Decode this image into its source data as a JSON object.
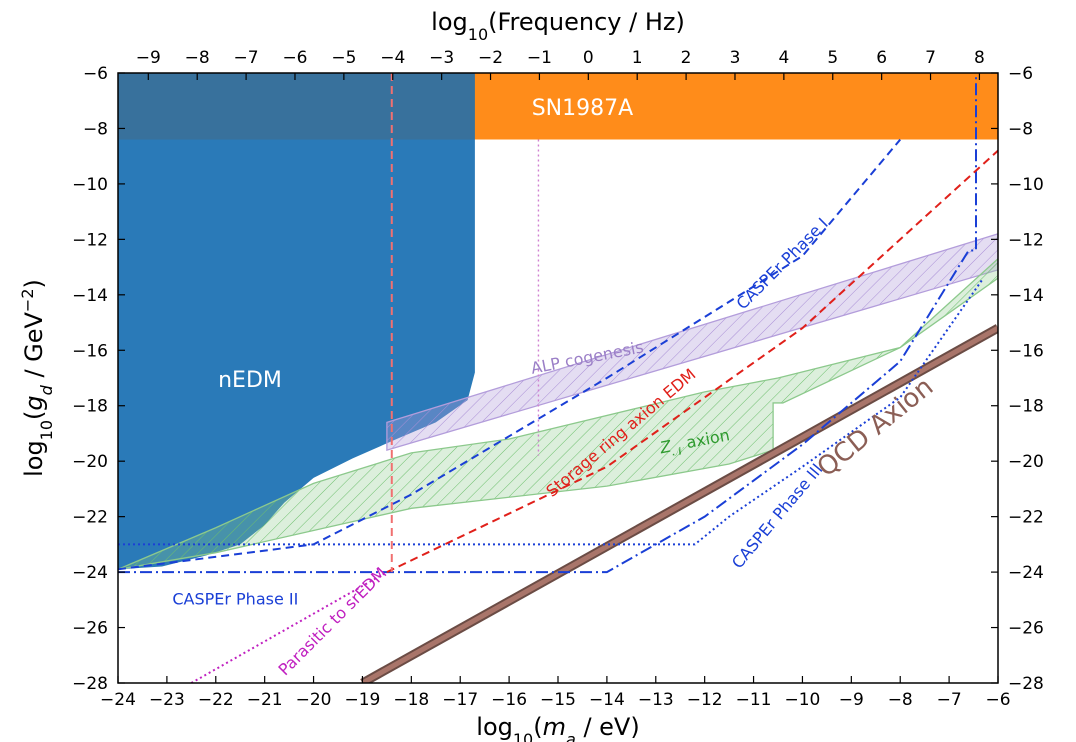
{
  "chart_data": {
    "type": "area",
    "x_axis": {
      "label_parts": [
        {
          "t": "log"
        },
        {
          "t": "10",
          "sub": true
        },
        {
          "t": "("
        },
        {
          "t": "m",
          "italic": true
        },
        {
          "t": "a",
          "sub": true,
          "italic": true
        },
        {
          "t": " / eV)"
        }
      ],
      "range": [
        -24,
        -6
      ],
      "ticks": [
        -24,
        -23,
        -22,
        -21,
        -20,
        -19,
        -18,
        -17,
        -16,
        -15,
        -14,
        -13,
        -12,
        -11,
        -10,
        -9,
        -8,
        -7,
        -6
      ]
    },
    "x2_axis": {
      "label_parts": [
        {
          "t": "log"
        },
        {
          "t": "10",
          "sub": true
        },
        {
          "t": "(Frequency / Hz)"
        }
      ],
      "ticks": [
        -9,
        -8,
        -7,
        -6,
        -5,
        -4,
        -3,
        -2,
        -1,
        0,
        1,
        2,
        3,
        4,
        5,
        6,
        7,
        8
      ],
      "offset": 14.38
    },
    "y_axis": {
      "label_parts": [
        {
          "t": "log"
        },
        {
          "t": "10",
          "sub": true
        },
        {
          "t": "("
        },
        {
          "t": "g",
          "italic": true
        },
        {
          "t": "d",
          "sub": true,
          "italic": true
        },
        {
          "t": " / GeV"
        },
        {
          "t": "−2",
          "sup": true
        },
        {
          "t": ")"
        }
      ],
      "range": [
        -28,
        -6
      ],
      "ticks": [
        -28,
        -26,
        -24,
        -22,
        -20,
        -18,
        -16,
        -14,
        -12,
        -10,
        -8,
        -6
      ]
    },
    "regions": [
      {
        "name": "SN1987A",
        "color": "#ff8c1a",
        "points": [
          [
            -24,
            -6
          ],
          [
            -6,
            -6
          ],
          [
            -6,
            -8.4
          ],
          [
            -24,
            -8.4
          ]
        ],
        "label": "SN1987A",
        "label_pos": [
          -14.5,
          -7.3
        ],
        "label_color": "#ffffff",
        "label_size": 22
      },
      {
        "name": "nEDM",
        "color": "#2a7ab8",
        "points": [
          [
            -24,
            -6
          ],
          [
            -16.7,
            -6
          ],
          [
            -16.7,
            -16.8
          ],
          [
            -16.85,
            -17.8
          ],
          [
            -17.5,
            -18.6
          ],
          [
            -18.3,
            -19.2
          ],
          [
            -19.2,
            -19.9
          ],
          [
            -20.0,
            -20.6
          ],
          [
            -20.6,
            -21.5
          ],
          [
            -21.0,
            -22.3
          ],
          [
            -21.5,
            -23.0
          ],
          [
            -22.2,
            -23.4
          ],
          [
            -23.1,
            -23.8
          ],
          [
            -24,
            -23.9
          ]
        ],
        "label": "nEDM",
        "label_pos": [
          -21.3,
          -17.1
        ],
        "label_color": "#ffffff",
        "label_size": 22
      },
      {
        "name": "ALP cogenesis",
        "color": "#b39ddb",
        "points": [
          [
            -18.5,
            -18.6
          ],
          [
            -6,
            -11.8
          ],
          [
            -6,
            -13.1
          ],
          [
            -18.5,
            -19.6
          ]
        ],
        "label": "ALP cogenesis",
        "label_pos": [
          -14.4,
          -16.3
        ],
        "label_color": "#9b7fc7",
        "label_size": 16,
        "label_angle": -11
      },
      {
        "name": "Z_N axion",
        "color": "#8cc98c",
        "points": [
          [
            -24,
            -23.9
          ],
          [
            -22,
            -22.4
          ],
          [
            -20,
            -20.8
          ],
          [
            -18,
            -19.7
          ],
          [
            -16,
            -19.2
          ],
          [
            -12,
            -17.5
          ],
          [
            -10.5,
            -17.0
          ],
          [
            -8,
            -15.9
          ],
          [
            -6,
            -12.7
          ],
          [
            -6,
            -13.4
          ],
          [
            -8,
            -15.9
          ],
          [
            -10.4,
            -17.9
          ],
          [
            -10.6,
            -17.9
          ],
          [
            -10.6,
            -19.6
          ],
          [
            -11.5,
            -20.1
          ],
          [
            -14,
            -20.9
          ],
          [
            -18,
            -21.7
          ],
          [
            -22,
            -23.3
          ],
          [
            -24,
            -23.9
          ]
        ],
        "label": "Z",
        "label_sub": "𝒩",
        "label_rest": " axion",
        "label_pos": [
          -12.2,
          -19.3
        ],
        "label_color": "#2e9a2e",
        "label_size": 16,
        "label_angle": -11
      }
    ],
    "lines": [
      {
        "name": "CASPEr Phase I",
        "color": "#1a3fd6",
        "dash": "8,5",
        "width": 2,
        "points": [
          [
            -24,
            -23.9
          ],
          [
            -20.0,
            -23.0
          ],
          [
            -18.0,
            -21.2
          ],
          [
            -14.0,
            -17.0
          ],
          [
            -10.0,
            -12.6
          ],
          [
            -8.0,
            -8.4
          ]
        ],
        "label": "CASPEr Phase I",
        "label_pos": [
          -10.4,
          -12.9
        ],
        "label_angle": -45,
        "label_color": "#1a3fd6"
      },
      {
        "name": "CASPEr Phase II",
        "color": "#1a3fd6",
        "dash": "12,4,2,4",
        "width": 2,
        "points": [
          [
            -24,
            -24.0
          ],
          [
            -14.0,
            -24.0
          ],
          [
            -12.0,
            -22.0
          ],
          [
            -10.0,
            -19.4
          ],
          [
            -8.0,
            -16.4
          ],
          [
            -6.6,
            -12.4
          ],
          [
            -6.45,
            -12.4
          ],
          [
            -6.45,
            -6.0
          ]
        ],
        "label": "CASPEr Phase II",
        "label_pos": [
          -21.6,
          -25.0
        ],
        "label_angle": 0,
        "label_color": "#1a3fd6"
      },
      {
        "name": "CASPEr Phase III",
        "color": "#1a3fd6",
        "dash": "2,3",
        "width": 2,
        "points": [
          [
            -24,
            -23.0
          ],
          [
            -12.2,
            -23.0
          ],
          [
            -11.5,
            -22.0
          ],
          [
            -10.0,
            -20.2
          ],
          [
            -8.0,
            -17.7
          ],
          [
            -6.3,
            -13.4
          ]
        ],
        "label": "CASPEr Phase III",
        "label_pos": [
          -10.5,
          -22.0
        ],
        "label_angle": -50,
        "label_color": "#1a3fd6"
      },
      {
        "name": "Storage ring axion EDM",
        "color": "#e0201a",
        "dash": "8,5",
        "width": 2,
        "points": [
          [
            -18.5,
            -24.0
          ],
          [
            -14.0,
            -20.2
          ],
          [
            -10.0,
            -15.2
          ],
          [
            -6.0,
            -8.8
          ]
        ],
        "label": "Storage ring axion EDM",
        "label_pos": [
          -13.7,
          -19.0
        ],
        "label_angle": -40,
        "label_color": "#e0201a"
      },
      {
        "name": "Parasitic to srEDM",
        "color": "#c020c0",
        "dash": "2,3",
        "width": 2,
        "points": [
          [
            -22.5,
            -28.0
          ],
          [
            -18.5,
            -24.0
          ]
        ],
        "label": "Parasitic to srEDM",
        "label_pos": [
          -19.6,
          -25.8
        ],
        "label_angle": -45,
        "label_color": "#c020c0"
      },
      {
        "name": "SN vertical",
        "color": "#f07070",
        "dash": "8,5",
        "width": 2,
        "points": [
          [
            -18.4,
            -6.0
          ],
          [
            -18.4,
            -24.0
          ]
        ]
      },
      {
        "name": "Storage ring vertical",
        "color": "#d080d0",
        "dash": "2,3",
        "width": 1.4,
        "points": [
          [
            -15.4,
            -8.4
          ],
          [
            -15.4,
            -19.8
          ]
        ]
      }
    ],
    "qcd_axion": {
      "name": "QCD Axion",
      "color": "#a9756a",
      "edge_color": "#6b4c45",
      "points": [
        [
          -19.0,
          -28.0
        ],
        [
          -6.0,
          -15.2
        ]
      ],
      "label": "QCD Axion",
      "label_pos": [
        -8.5,
        -18.8
      ],
      "label_angle": -39,
      "label_color": "#8b5e55",
      "label_size": 26
    }
  }
}
